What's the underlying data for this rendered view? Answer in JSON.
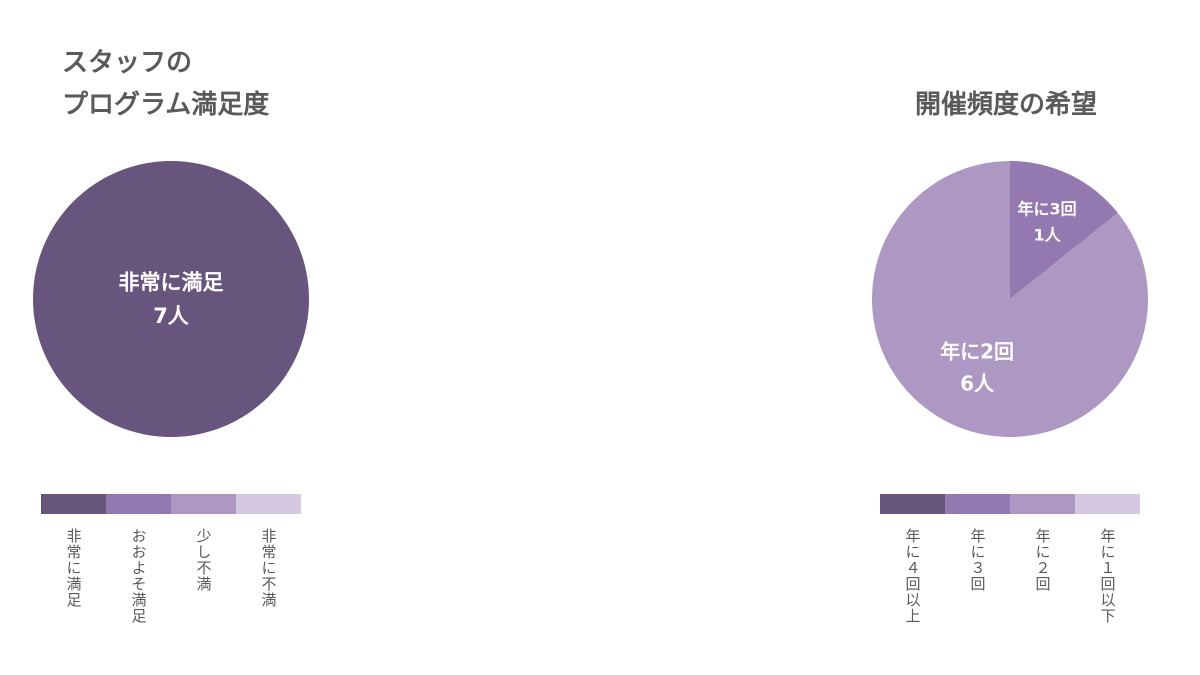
{
  "chart_data": [
    {
      "type": "pie",
      "title_lines": [
        "スタッフの",
        "プログラム満足度"
      ],
      "categories": [
        "非常に満足",
        "おおよそ満足",
        "少し不満",
        "非常に不満"
      ],
      "values": [
        7,
        0,
        0,
        0
      ],
      "colors": [
        "#68557e",
        "#9478b0",
        "#ad98c4",
        "#d4c9e0"
      ],
      "slice_labels": [
        {
          "category": "非常に満足",
          "lines": [
            "非常に満足",
            "7人"
          ]
        }
      ],
      "legend_position": "bottom"
    },
    {
      "type": "pie",
      "title_lines": [
        "開催頻度の希望"
      ],
      "categories": [
        "年に４回以上",
        "年に３回",
        "年に２回",
        "年に１回以下"
      ],
      "values": [
        0,
        1,
        6,
        0
      ],
      "colors": [
        "#68557e",
        "#9478b0",
        "#ad98c4",
        "#d4c9e0"
      ],
      "slice_labels": [
        {
          "category": "年に３回",
          "lines": [
            "年に3回",
            "1人"
          ]
        },
        {
          "category": "年に２回",
          "lines": [
            "年に2回",
            "6人"
          ]
        }
      ],
      "legend_position": "bottom"
    }
  ]
}
